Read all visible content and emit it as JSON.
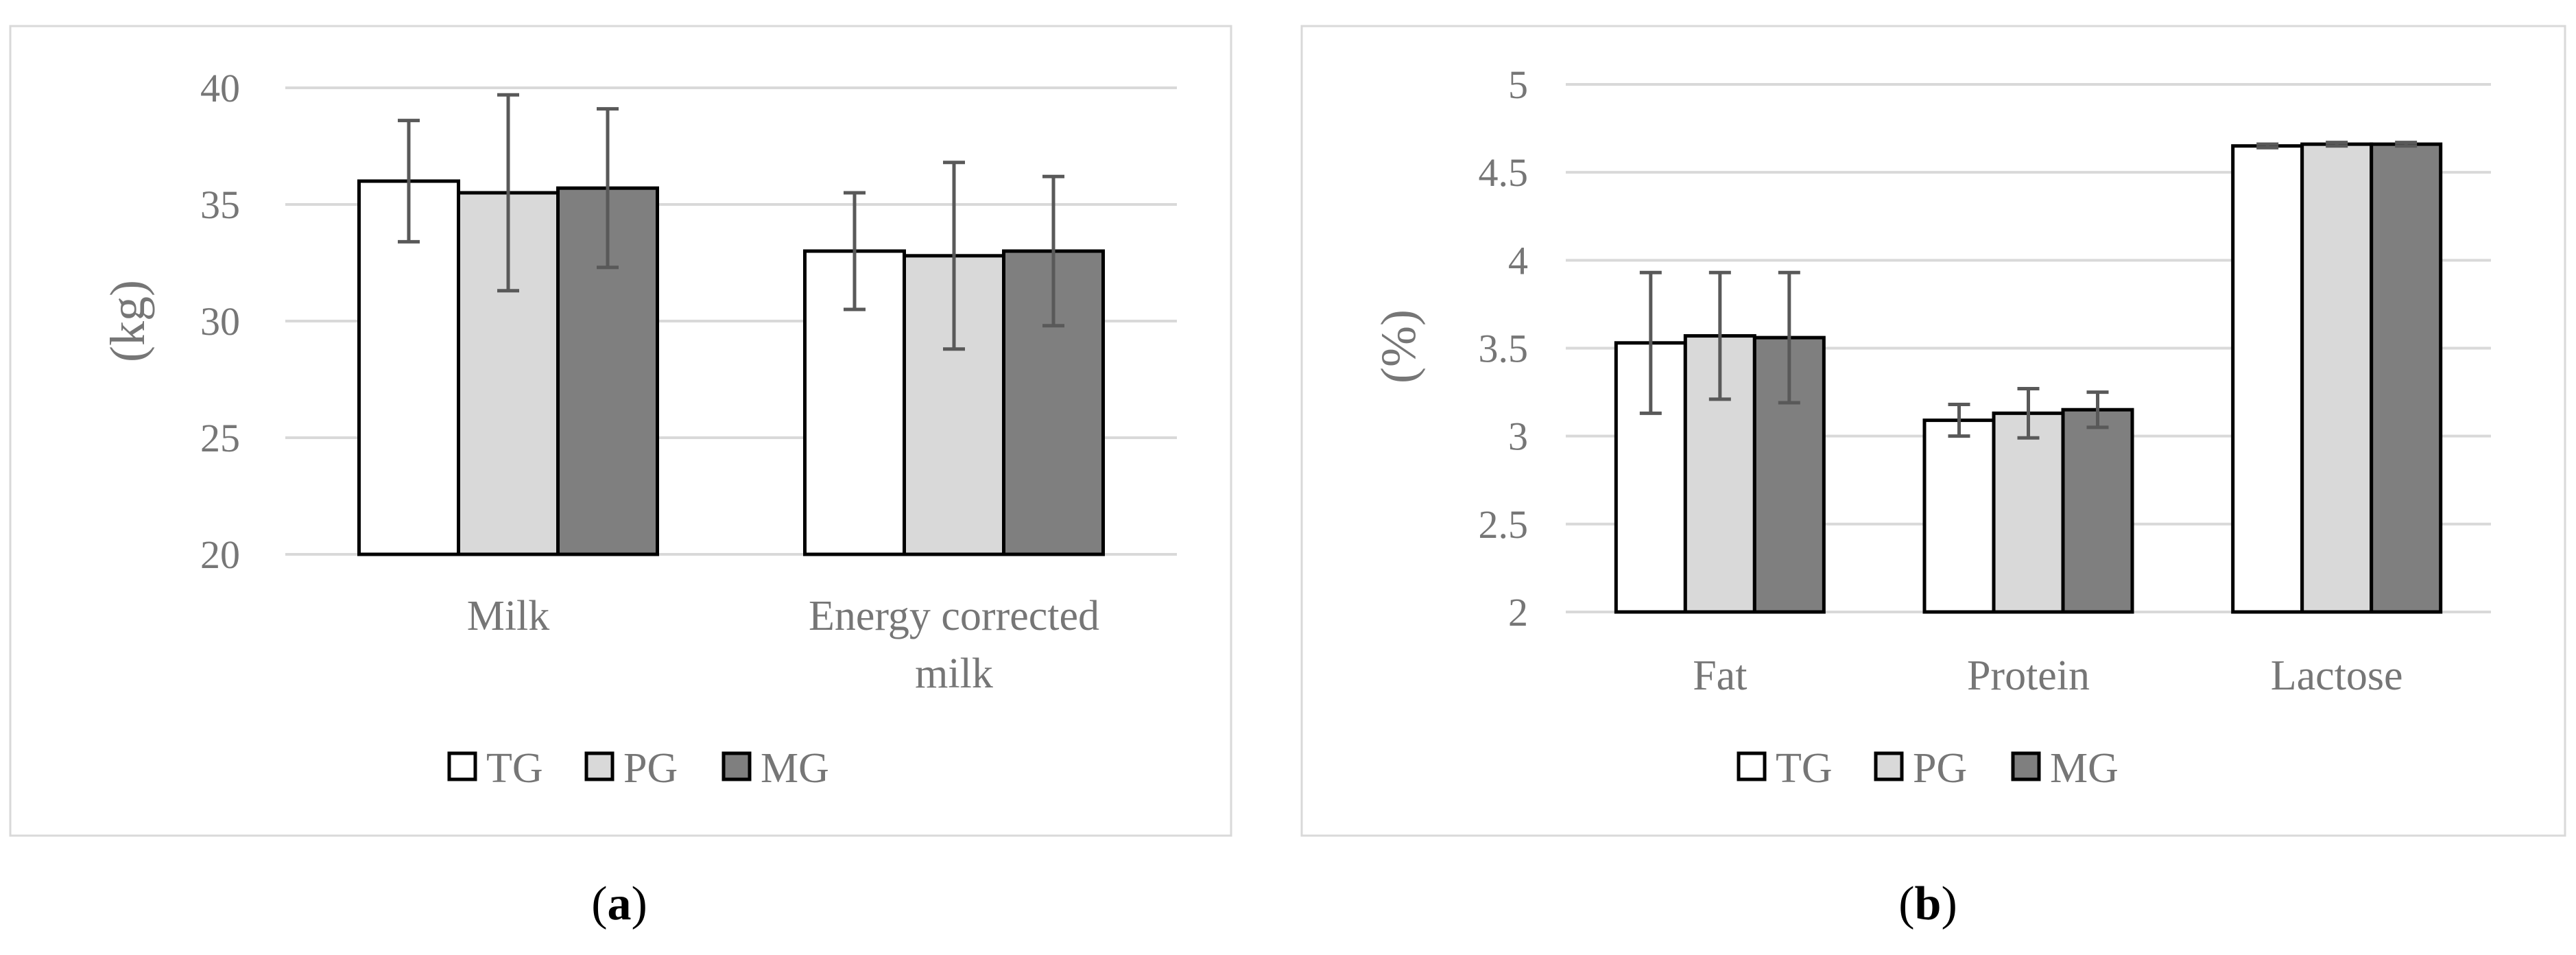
{
  "colors": {
    "TG": "#ffffff",
    "PG": "#d9d9d9",
    "MG": "#7f7f7f"
  },
  "chart_data": [
    {
      "type": "bar",
      "panel_label": "a",
      "ylabel": "(kg)",
      "ylim": [
        20,
        40
      ],
      "yticks": [
        20,
        25,
        30,
        35,
        40
      ],
      "categories": [
        [
          "Milk"
        ],
        [
          "Energy corrected",
          "milk"
        ]
      ],
      "series": [
        {
          "name": "TG",
          "values": [
            36.0,
            33.0
          ],
          "errors": [
            2.6,
            2.5
          ]
        },
        {
          "name": "PG",
          "values": [
            35.5,
            32.8
          ],
          "errors": [
            4.2,
            4.0
          ]
        },
        {
          "name": "MG",
          "values": [
            35.7,
            33.0
          ],
          "errors": [
            3.4,
            3.2
          ]
        }
      ],
      "legend_position": "bottom"
    },
    {
      "type": "bar",
      "panel_label": "b",
      "ylabel": "(%)",
      "ylim": [
        2,
        5
      ],
      "yticks": [
        "2",
        "2.5",
        "3",
        "3.5",
        "4",
        "4.5",
        "5"
      ],
      "categories": [
        [
          "Fat"
        ],
        [
          "Protein"
        ],
        [
          "Lactose"
        ]
      ],
      "series": [
        {
          "name": "TG",
          "values": [
            3.53,
            3.09,
            4.65
          ],
          "errors": [
            0.4,
            0.09,
            0.01
          ]
        },
        {
          "name": "PG",
          "values": [
            3.57,
            3.13,
            4.66
          ],
          "errors": [
            0.36,
            0.14,
            0.01
          ]
        },
        {
          "name": "MG",
          "values": [
            3.56,
            3.15,
            4.66
          ],
          "errors": [
            0.37,
            0.1,
            0.01
          ]
        }
      ],
      "legend_position": "bottom"
    }
  ]
}
